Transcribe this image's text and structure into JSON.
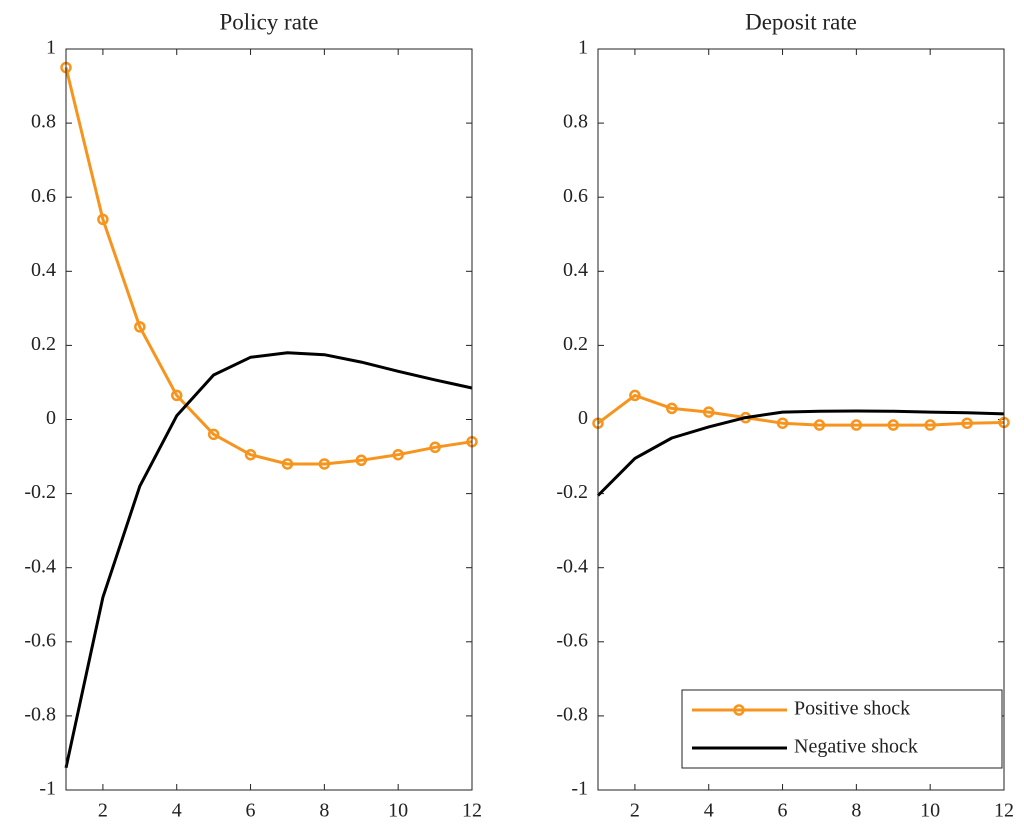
{
  "chart_data": [
    {
      "type": "line",
      "title": "Policy rate",
      "x": [
        1,
        2,
        3,
        4,
        5,
        6,
        7,
        8,
        9,
        10,
        11,
        12
      ],
      "series": [
        {
          "color": "#f7941d",
          "marker": "circle",
          "values": [
            0.95,
            0.54,
            0.25,
            0.065,
            -0.04,
            -0.095,
            -0.12,
            -0.12,
            -0.11,
            -0.095,
            -0.075,
            -0.06
          ]
        },
        {
          "color": "#000000",
          "values": [
            -0.94,
            -0.48,
            -0.18,
            0.01,
            0.12,
            0.168,
            0.18,
            0.175,
            0.155,
            0.13,
            0.107,
            0.085
          ]
        }
      ],
      "xlim": [
        1,
        12
      ],
      "xticks": [
        2,
        4,
        6,
        8,
        10,
        12
      ],
      "ylim": [
        -1,
        1
      ],
      "yticks": [
        -1,
        -0.8,
        -0.6,
        -0.4,
        -0.2,
        0,
        0.2,
        0.4,
        0.6,
        0.8,
        1
      ]
    },
    {
      "type": "line",
      "title": "Deposit rate",
      "x": [
        1,
        2,
        3,
        4,
        5,
        6,
        7,
        8,
        9,
        10,
        11,
        12
      ],
      "series": [
        {
          "name": "Positive shock",
          "color": "#f7941d",
          "marker": "circle",
          "values": [
            -0.01,
            0.065,
            0.03,
            0.02,
            0.005,
            -0.01,
            -0.015,
            -0.015,
            -0.015,
            -0.015,
            -0.01,
            -0.008
          ]
        },
        {
          "name": "Negative shock",
          "color": "#000000",
          "values": [
            -0.205,
            -0.105,
            -0.05,
            -0.02,
            0.005,
            0.02,
            0.022,
            0.023,
            0.022,
            0.02,
            0.018,
            0.015
          ]
        }
      ],
      "xlim": [
        1,
        12
      ],
      "xticks": [
        2,
        4,
        6,
        8,
        10,
        12
      ],
      "ylim": [
        -1,
        1
      ],
      "yticks": [
        -1,
        -0.8,
        -0.6,
        -0.4,
        -0.2,
        0,
        0.2,
        0.4,
        0.6,
        0.8,
        1
      ],
      "legend": "lower right"
    }
  ]
}
